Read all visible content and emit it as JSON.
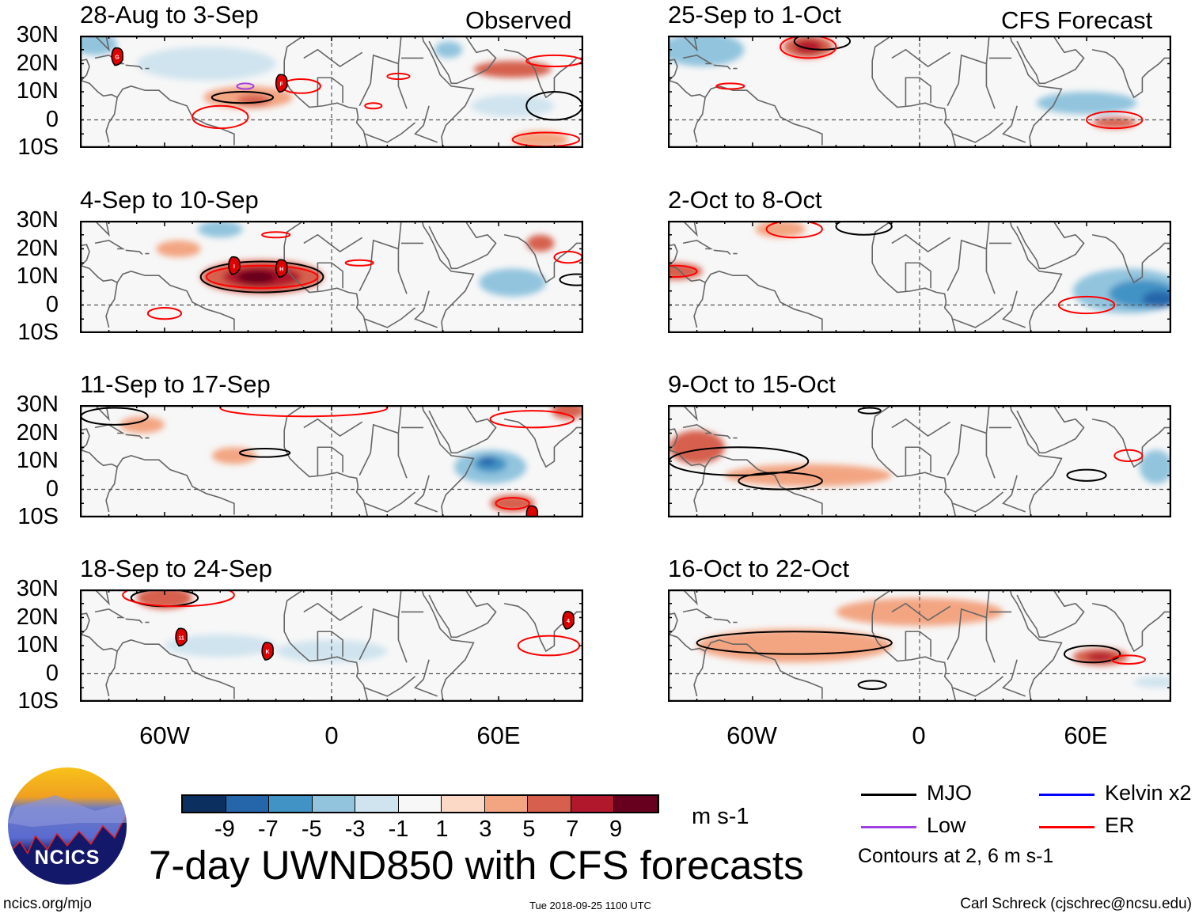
{
  "column_labels": {
    "left": "Observed",
    "right": "CFS Forecast"
  },
  "lat_labels": [
    "30N",
    "20N",
    "10N",
    "0",
    "10S"
  ],
  "lon_labels": [
    "60W",
    "0",
    "60E"
  ],
  "colorbar": {
    "colors": [
      "#0b305f",
      "#2566ab",
      "#4293c5",
      "#92c4de",
      "#d0e4ef",
      "#f7f7f7",
      "#fcd9c6",
      "#f3a582",
      "#d6604d",
      "#b2182b",
      "#67001f"
    ],
    "ticks": [
      "-9",
      "-7",
      "-5",
      "-3",
      "-1",
      "1",
      "3",
      "5",
      "7",
      "9"
    ],
    "units": "m s-1"
  },
  "title": "7-day UWND850 with CFS forecasts",
  "legend": {
    "items": [
      {
        "label": "MJO",
        "color": "#000000"
      },
      {
        "label": "Kelvin x2",
        "color": "#0000ff"
      },
      {
        "label": "Low",
        "color": "#a040e0"
      },
      {
        "label": "ER",
        "color": "#ff0000"
      }
    ],
    "note": "Contours at 2, 6 m s-1"
  },
  "footer": {
    "left": "ncics.org/mjo",
    "center": "Tue 2018-09-25 1100 UTC",
    "right": "Carl Schreck (cjschrec@ncsu.edu)"
  },
  "logo": {
    "text": "NCICS"
  },
  "chart_data": {
    "type": "heatmap",
    "variable": "850-hPa zonal wind anomaly",
    "lon_range": [
      -90,
      90
    ],
    "lat_range": [
      -10,
      30
    ],
    "panels": [
      {
        "title": "28-Aug to 3-Sep",
        "source": "Observed",
        "anom": [
          [
            -45,
            20,
            25,
            6,
            -2
          ],
          [
            -85,
            27,
            8,
            4,
            -5
          ],
          [
            -30,
            8,
            16,
            4,
            3
          ],
          [
            -28,
            7,
            6,
            2,
            5
          ],
          [
            65,
            18,
            14,
            3,
            5
          ],
          [
            42,
            25,
            5,
            3,
            -5
          ],
          [
            65,
            5,
            15,
            4,
            -3
          ],
          [
            10,
            -5,
            15,
            4,
            -1
          ],
          [
            75,
            -7,
            10,
            3,
            3
          ]
        ],
        "contours": [
          [
            -32,
            8,
            11,
            2,
            "MJO"
          ],
          [
            80,
            5,
            10,
            5,
            "MJO"
          ],
          [
            -31,
            12,
            3,
            1,
            "Low"
          ],
          [
            -40,
            1,
            10,
            4,
            "ER"
          ],
          [
            -11,
            12,
            7,
            2.5,
            "ER"
          ],
          [
            24,
            15.5,
            4,
            1,
            "ER"
          ],
          [
            80,
            21,
            10,
            2,
            "ER"
          ],
          [
            77,
            -7,
            12,
            2.5,
            "ER"
          ],
          [
            15,
            5,
            3,
            1,
            "ER"
          ]
        ],
        "storms": [
          [
            -77,
            22.5,
            "G"
          ],
          [
            -18,
            13,
            "F"
          ]
        ]
      },
      {
        "title": "4-Sep to 10-Sep",
        "source": "Observed",
        "anom": [
          [
            -25,
            10,
            22,
            6,
            5
          ],
          [
            -25,
            10,
            14,
            4,
            7
          ],
          [
            -27,
            10,
            7,
            2.5,
            9
          ],
          [
            -40,
            27,
            8,
            3,
            -5
          ],
          [
            -55,
            20,
            8,
            3,
            3
          ],
          [
            65,
            8,
            12,
            5,
            -5
          ],
          [
            75,
            22,
            5,
            3,
            5
          ],
          [
            20,
            0,
            15,
            4,
            -1
          ]
        ],
        "contours": [
          [
            -25,
            10,
            22,
            5.5,
            "MJO"
          ],
          [
            88,
            9,
            6,
            2,
            "MJO"
          ],
          [
            -25,
            10,
            20,
            4,
            "ER"
          ],
          [
            -60,
            -3,
            6,
            2,
            "ER"
          ],
          [
            -20,
            25,
            5,
            1,
            "ER"
          ],
          [
            10,
            15,
            5,
            1,
            "ER"
          ],
          [
            85,
            17,
            5,
            2,
            "ER"
          ]
        ],
        "storms": [
          [
            -35,
            14,
            "I"
          ],
          [
            -18,
            13,
            "H"
          ]
        ]
      },
      {
        "title": "11-Sep to 17-Sep",
        "source": "Observed",
        "anom": [
          [
            57,
            8,
            13,
            6,
            -5
          ],
          [
            57,
            9,
            6,
            3,
            -7
          ],
          [
            56,
            10,
            3,
            1.5,
            -9
          ],
          [
            -68,
            23,
            8,
            3,
            3
          ],
          [
            -35,
            12,
            8,
            3,
            3
          ],
          [
            65,
            -5,
            8,
            3,
            5
          ],
          [
            85,
            28,
            6,
            3,
            5
          ],
          [
            0,
            -3,
            30,
            4,
            -1
          ]
        ],
        "contours": [
          [
            -78,
            26,
            12,
            3,
            "MJO"
          ],
          [
            -24,
            13,
            9,
            1.5,
            "MJO"
          ],
          [
            -10,
            29,
            30,
            3,
            "ER"
          ],
          [
            72,
            25,
            15,
            3,
            "ER"
          ],
          [
            65,
            -5,
            6,
            2,
            "ER"
          ]
        ],
        "storms": [
          [
            72,
            -9,
            ""
          ]
        ]
      },
      {
        "title": "18-Sep to 24-Sep",
        "source": "Observed",
        "anom": [
          [
            -60,
            27,
            10,
            4,
            5
          ],
          [
            -40,
            10,
            20,
            4,
            -3
          ],
          [
            0,
            8,
            20,
            4,
            -3
          ],
          [
            40,
            20,
            10,
            4,
            -1
          ],
          [
            60,
            5,
            12,
            4,
            -1
          ]
        ],
        "contours": [
          [
            -60,
            27,
            12,
            3,
            "MJO"
          ],
          [
            -55,
            28,
            20,
            4,
            "ER"
          ],
          [
            78,
            10,
            11,
            3.5,
            "ER"
          ]
        ],
        "storms": [
          [
            -54,
            13,
            "11"
          ],
          [
            -23,
            8,
            "K"
          ],
          [
            85,
            19,
            "4"
          ]
        ]
      },
      {
        "title": "25-Sep to 1-Oct",
        "source": "CFS Forecast",
        "anom": [
          [
            -78,
            25,
            15,
            6,
            -5
          ],
          [
            -40,
            26,
            9,
            4,
            5
          ],
          [
            -40,
            26,
            5,
            2.5,
            7
          ],
          [
            60,
            6,
            18,
            4,
            -5
          ],
          [
            70,
            -1,
            8,
            2,
            5
          ],
          [
            0,
            15,
            25,
            6,
            -1
          ],
          [
            -20,
            0,
            25,
            4,
            -1
          ]
        ],
        "contours": [
          [
            -35,
            28,
            10,
            3,
            "MJO"
          ],
          [
            -40,
            26,
            10,
            4,
            "ER"
          ],
          [
            -68,
            12,
            5,
            1,
            "ER"
          ],
          [
            70,
            0,
            10,
            3,
            "ER"
          ]
        ],
        "storms": []
      },
      {
        "title": "2-Oct to 8-Oct",
        "source": "CFS Forecast",
        "anom": [
          [
            75,
            5,
            20,
            8,
            -5
          ],
          [
            80,
            4,
            12,
            5,
            -7
          ],
          [
            86,
            2,
            6,
            3,
            -9
          ],
          [
            -88,
            12,
            10,
            3,
            5
          ],
          [
            -50,
            27,
            9,
            3,
            3
          ],
          [
            0,
            20,
            20,
            6,
            -1
          ],
          [
            -20,
            -3,
            20,
            4,
            -1
          ]
        ],
        "contours": [
          [
            -20,
            28,
            10,
            3,
            "MJO"
          ],
          [
            -45,
            27,
            10,
            3,
            "ER"
          ],
          [
            -88,
            12,
            8,
            2,
            "ER"
          ],
          [
            60,
            0,
            10,
            3,
            "ER"
          ]
        ],
        "storms": []
      },
      {
        "title": "9-Oct to 15-Oct",
        "source": "CFS Forecast",
        "anom": [
          [
            -80,
            15,
            10,
            6,
            5
          ],
          [
            -40,
            5,
            30,
            4,
            3
          ],
          [
            85,
            8,
            6,
            6,
            -5
          ],
          [
            60,
            10,
            15,
            5,
            -1
          ]
        ],
        "contours": [
          [
            -65,
            10,
            25,
            5,
            "MJO"
          ],
          [
            -50,
            3,
            15,
            3,
            "MJO"
          ],
          [
            60,
            5,
            7,
            2,
            "MJO"
          ],
          [
            -18,
            28,
            4,
            1,
            "MJO"
          ],
          [
            75,
            12,
            5,
            2,
            "ER"
          ]
        ],
        "storms": []
      },
      {
        "title": "16-Oct to 22-Oct",
        "source": "CFS Forecast",
        "anom": [
          [
            -45,
            10,
            35,
            6,
            3
          ],
          [
            65,
            6,
            10,
            3,
            5
          ],
          [
            65,
            6,
            5,
            1.5,
            7
          ],
          [
            0,
            22,
            30,
            5,
            3
          ],
          [
            85,
            -3,
            8,
            2,
            -3
          ]
        ],
        "contours": [
          [
            -45,
            11,
            35,
            4,
            "MJO"
          ],
          [
            62,
            7,
            10,
            3,
            "MJO"
          ],
          [
            -17,
            -4,
            5,
            1.5,
            "MJO"
          ],
          [
            75,
            5,
            6,
            1.5,
            "ER"
          ]
        ],
        "storms": []
      }
    ]
  }
}
